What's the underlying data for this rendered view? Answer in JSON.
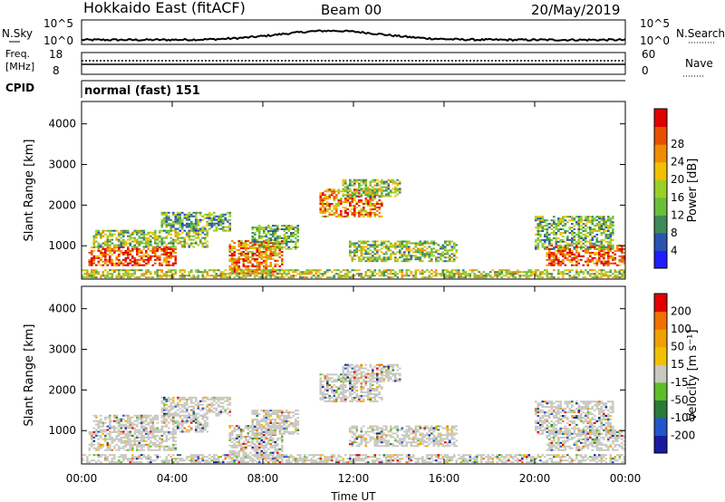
{
  "header": {
    "title": "Hokkaido East (fitACF)",
    "beam": "Beam 00",
    "date": "20/May/2019"
  },
  "noise_panel": {
    "left_label": "N.Sky",
    "right_label": "N.Search",
    "left_ticks": [
      "10^5",
      "10^0"
    ],
    "right_ticks": [
      "10^5",
      "10^0"
    ]
  },
  "freq_panel": {
    "left_label": "Freq.",
    "left_unit": "[MHz]",
    "left_ticks": [
      "18",
      "8"
    ],
    "right_label": "Nave",
    "right_ticks": [
      "60",
      "0"
    ]
  },
  "cpid_panel": {
    "label": "CPID",
    "text": "normal (fast) 151"
  },
  "chart_data": [
    {
      "type": "heatmap",
      "name": "power",
      "ylabel": "Slant Range [km]",
      "xlabel": "Time UT",
      "xlim_hours": [
        0,
        24
      ],
      "ylim_km": [
        180,
        4550
      ],
      "x_ticks": [
        "00:00",
        "04:00",
        "08:00",
        "12:00",
        "16:00",
        "20:00",
        "00:00"
      ],
      "y_ticks": [
        1000,
        2000,
        3000,
        4000
      ],
      "colorbar": {
        "label": "Power [dB]",
        "tick_labels": [
          "4",
          "8",
          "12",
          "16",
          "20",
          "24",
          "28"
        ],
        "colors": [
          "#1e1eff",
          "#2a52b0",
          "#3e8a5a",
          "#6abf3a",
          "#9bcf2a",
          "#f0c000",
          "#f08c00",
          "#e85000",
          "#e00000"
        ]
      }
    },
    {
      "type": "heatmap",
      "name": "velocity",
      "ylabel": "Slant Range [km]",
      "xlabel": "Time UT",
      "xlim_hours": [
        0,
        24
      ],
      "ylim_km": [
        180,
        4550
      ],
      "x_ticks": [
        "00:00",
        "04:00",
        "08:00",
        "12:00",
        "16:00",
        "20:00",
        "00:00"
      ],
      "y_ticks": [
        1000,
        2000,
        3000,
        4000
      ],
      "colorbar": {
        "label": "Velocity [m s⁻¹]",
        "tick_labels": [
          "200",
          "100",
          "50",
          "15",
          "-15",
          "-50",
          "-100",
          "-200"
        ],
        "colors": [
          "#1a1aa0",
          "#2255cc",
          "#2a7a3a",
          "#5cbf2a",
          "#c8c8c0",
          "#f0c000",
          "#f0a000",
          "#f07000",
          "#e00000"
        ]
      }
    }
  ],
  "x_axis_title": "Time UT"
}
